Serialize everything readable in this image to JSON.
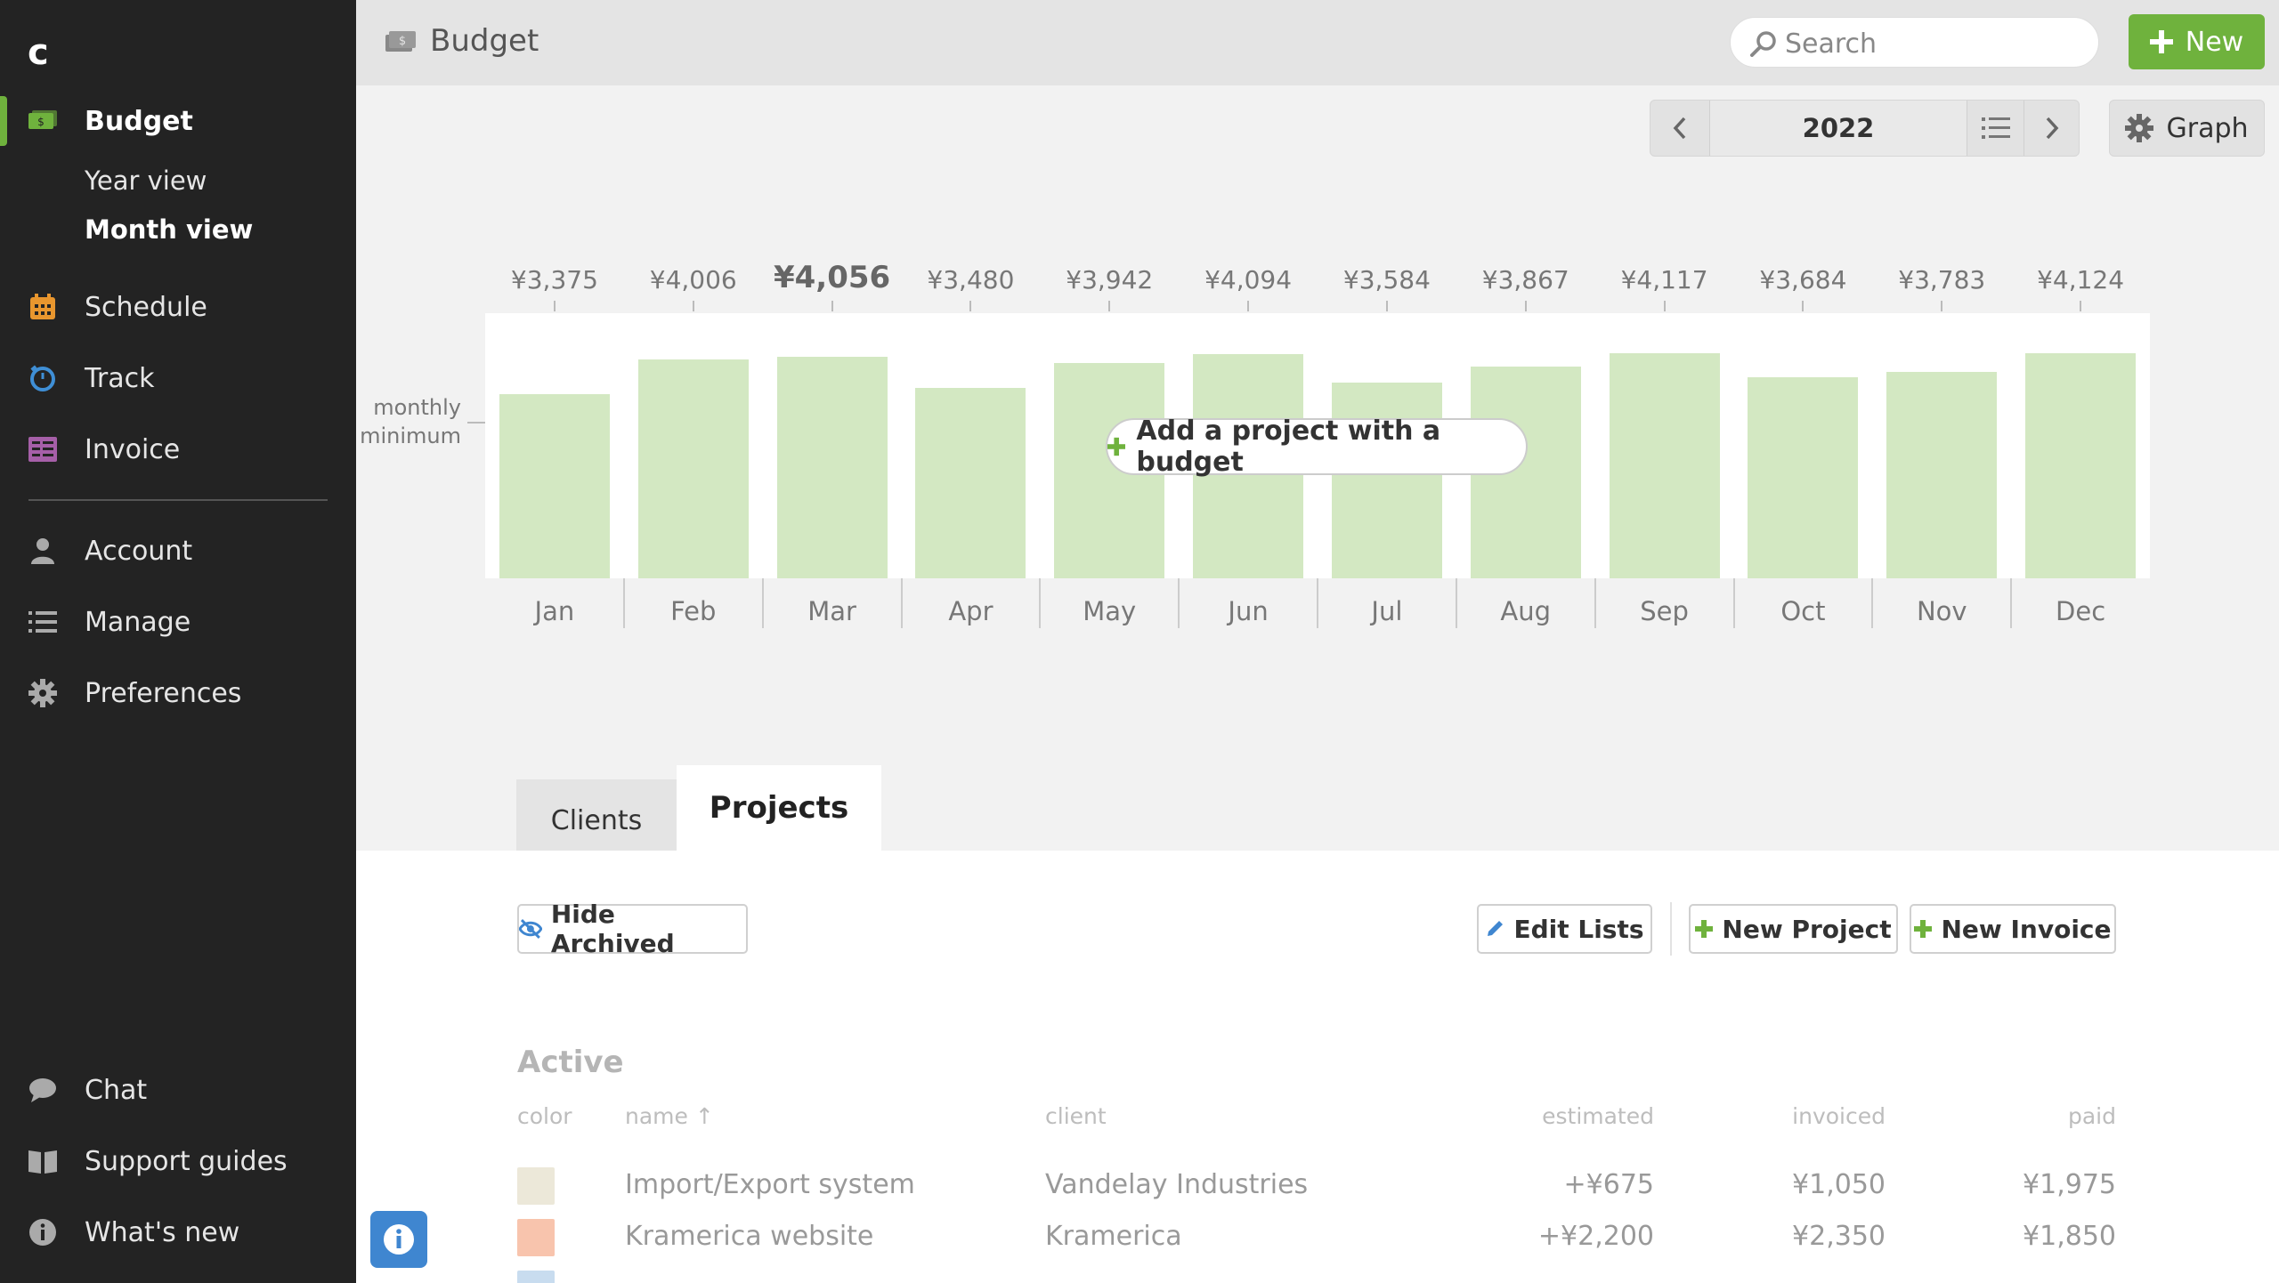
{
  "sidebar": {
    "logo": "c",
    "budget": "Budget",
    "year_view": "Year view",
    "month_view": "Month view",
    "schedule": "Schedule",
    "track": "Track",
    "invoice": "Invoice",
    "account": "Account",
    "manage": "Manage",
    "preferences": "Preferences",
    "chat": "Chat",
    "support": "Support guides",
    "whats_new": "What's new",
    "accent": "#6fb23d"
  },
  "header": {
    "title": "Budget",
    "search_placeholder": "Search",
    "new_label": "New"
  },
  "toolbar": {
    "year": "2022",
    "graph_label": "Graph"
  },
  "chart_data": {
    "type": "bar",
    "categories": [
      "Jan",
      "Feb",
      "Mar",
      "Apr",
      "May",
      "Jun",
      "Jul",
      "Aug",
      "Sep",
      "Oct",
      "Nov",
      "Dec"
    ],
    "values": [
      3375,
      4006,
      4056,
      3480,
      3942,
      4094,
      3584,
      3867,
      4117,
      3684,
      3783,
      4124
    ],
    "labels": [
      "¥3,375",
      "¥4,006",
      "¥4,056",
      "¥3,480",
      "¥3,942",
      "¥4,094",
      "¥3,584",
      "¥3,867",
      "¥4,117",
      "¥3,684",
      "¥3,783",
      "¥4,124"
    ],
    "highlight_index": 2,
    "min_label": "monthly minimum",
    "ylim": [
      0,
      4850
    ],
    "bar_color": "#d3e8c2",
    "overlay_button": "Add a project with a budget"
  },
  "tabs": {
    "clients": "Clients",
    "projects": "Projects"
  },
  "actions": {
    "hide_archived": "Hide Archived",
    "edit_lists": "Edit Lists",
    "new_project": "New Project",
    "new_invoice": "New Invoice"
  },
  "table": {
    "heading": "Active",
    "columns": {
      "color": "color",
      "name": "name ↑",
      "client": "client",
      "estimated": "estimated",
      "invoiced": "invoiced",
      "paid": "paid"
    },
    "rows": [
      {
        "color": "#ece8d9",
        "name": "Import/Export system",
        "client": "Vandelay Industries",
        "estimated": "+¥675",
        "invoiced": "¥1,050",
        "paid": "¥1,975"
      },
      {
        "color": "#f8c4ad",
        "name": "Kramerica website",
        "client": "Kramerica",
        "estimated": "+¥2,200",
        "invoiced": "¥2,350",
        "paid": "¥1,850"
      },
      {
        "color": "#c8dcef",
        "name": "",
        "client": "",
        "estimated": "",
        "invoiced": "",
        "paid": ""
      }
    ]
  }
}
